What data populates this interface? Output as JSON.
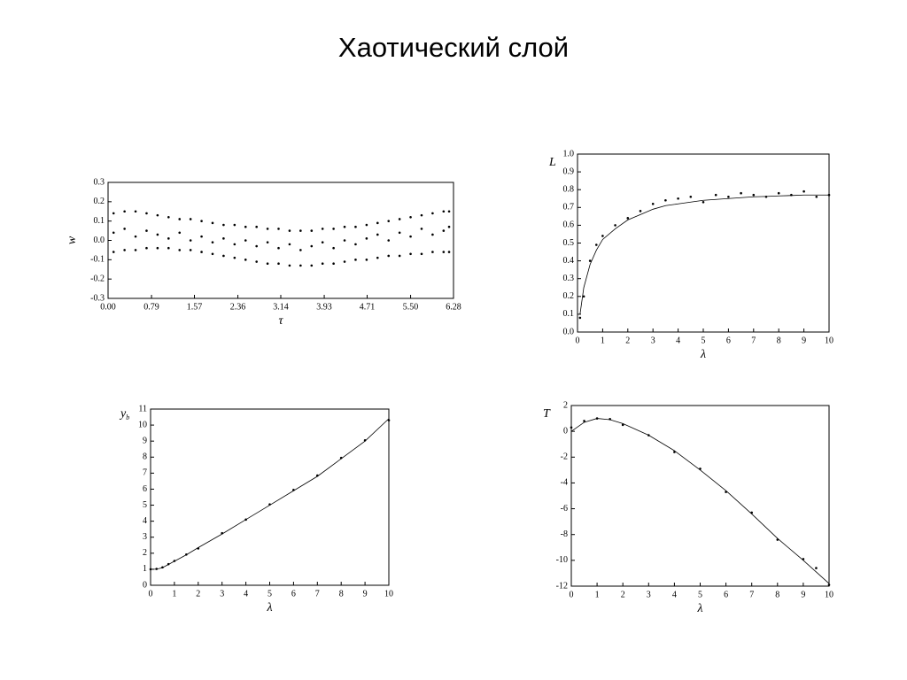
{
  "title": "Хаотический слой",
  "chart_data": [
    {
      "type": "scatter",
      "xlabel": "τ",
      "ylabel": "w",
      "xlim": [
        0,
        6.28
      ],
      "ylim": [
        -0.3,
        0.3
      ],
      "xticks": [
        {
          "value": 0,
          "label": "0.00"
        },
        0.79,
        1.57,
        2.36,
        3.14,
        3.93,
        4.71,
        {
          "value": 5.5,
          "label": "5.50"
        },
        6.28
      ],
      "yticks": [
        -0.3,
        -0.2,
        -0.1,
        {
          "value": 0,
          "label": "0.0"
        },
        0.1,
        0.2,
        0.3
      ],
      "x": [
        0.1,
        0.3,
        0.5,
        0.7,
        0.9,
        1.1,
        1.3,
        1.5,
        1.7,
        1.9,
        2.1,
        2.3,
        2.5,
        2.7,
        2.9,
        3.1,
        3.3,
        3.5,
        3.7,
        3.9,
        4.1,
        4.3,
        4.5,
        4.7,
        4.9,
        5.1,
        5.3,
        5.5,
        5.7,
        5.9,
        6.1,
        6.2
      ],
      "series": [
        {
          "color": "#000",
          "values": [
            0.14,
            0.15,
            0.15,
            0.14,
            0.13,
            0.12,
            0.11,
            0.11,
            0.1,
            0.09,
            0.08,
            0.08,
            0.07,
            0.07,
            0.06,
            0.06,
            0.05,
            0.05,
            0.05,
            0.06,
            0.06,
            0.07,
            0.07,
            0.08,
            0.09,
            0.1,
            0.11,
            0.12,
            0.13,
            0.14,
            0.15,
            0.15
          ]
        },
        {
          "color": "#000",
          "values": [
            0.04,
            0.06,
            0.02,
            0.05,
            0.03,
            0.01,
            0.04,
            0.0,
            0.02,
            -0.01,
            0.01,
            -0.02,
            0.0,
            -0.03,
            -0.01,
            -0.04,
            -0.02,
            -0.05,
            -0.03,
            -0.01,
            -0.04,
            0.0,
            -0.02,
            0.01,
            0.03,
            0.0,
            0.04,
            0.02,
            0.06,
            0.03,
            0.05,
            0.07
          ]
        },
        {
          "color": "#000",
          "values": [
            -0.06,
            -0.05,
            -0.05,
            -0.04,
            -0.04,
            -0.04,
            -0.05,
            -0.05,
            -0.06,
            -0.07,
            -0.08,
            -0.09,
            -0.1,
            -0.11,
            -0.12,
            -0.12,
            -0.13,
            -0.13,
            -0.13,
            -0.12,
            -0.12,
            -0.11,
            -0.1,
            -0.1,
            -0.09,
            -0.08,
            -0.08,
            -0.07,
            -0.07,
            -0.06,
            -0.06,
            -0.06
          ]
        }
      ]
    },
    {
      "type": "scatter",
      "xlabel": "λ",
      "ylabel": "L",
      "xlim": [
        0,
        10
      ],
      "ylim": [
        0,
        1
      ],
      "xticks": [
        0,
        1,
        2,
        3,
        4,
        5,
        6,
        7,
        8,
        9,
        10
      ],
      "yticks": [
        {
          "value": 0,
          "label": "0.0"
        },
        0.1,
        0.2,
        0.3,
        0.4,
        0.5,
        0.6,
        0.7,
        0.8,
        0.9,
        {
          "value": 1,
          "label": "1.0"
        }
      ],
      "x": [
        0.1,
        0.25,
        0.5,
        0.75,
        1,
        1.5,
        2,
        2.5,
        3,
        3.5,
        4,
        4.5,
        5,
        5.5,
        6,
        6.5,
        7,
        7.5,
        8,
        8.5,
        9,
        9.5,
        10
      ],
      "series": [
        {
          "type": "line",
          "color": "#000",
          "values": [
            0.1,
            0.25,
            0.38,
            0.46,
            0.52,
            0.58,
            0.63,
            0.66,
            0.69,
            0.71,
            0.72,
            0.73,
            0.74,
            0.745,
            0.75,
            0.755,
            0.76,
            0.762,
            0.765,
            0.767,
            0.77,
            0.77,
            0.77
          ]
        },
        {
          "color": "#000",
          "values": [
            0.08,
            0.2,
            0.4,
            0.49,
            0.54,
            0.6,
            0.64,
            0.68,
            0.72,
            0.74,
            0.75,
            0.76,
            0.73,
            0.77,
            0.76,
            0.78,
            0.77,
            0.76,
            0.78,
            0.77,
            0.79,
            0.76,
            0.77
          ]
        }
      ]
    },
    {
      "type": "scatter",
      "xlabel": "λ",
      "ylabel": {
        "text": "y",
        "sub": "b"
      },
      "xlim": [
        0,
        10
      ],
      "ylim": [
        0,
        11
      ],
      "xticks": [
        0,
        1,
        2,
        3,
        4,
        5,
        6,
        7,
        8,
        9,
        10
      ],
      "yticks": [
        0,
        1,
        2,
        3,
        4,
        5,
        6,
        7,
        8,
        9,
        10,
        11
      ],
      "x": [
        0,
        0.25,
        0.5,
        0.75,
        1,
        1.5,
        2,
        3,
        4,
        5,
        6,
        7,
        8,
        9,
        10
      ],
      "series": [
        {
          "type": "line",
          "color": "#000",
          "values": [
            1,
            1.0,
            1.1,
            1.3,
            1.5,
            1.9,
            2.35,
            3.2,
            4.1,
            5.0,
            5.9,
            6.8,
            7.9,
            9.0,
            10.4
          ]
        },
        {
          "color": "#000",
          "values": [
            1,
            1.02,
            1.12,
            1.32,
            1.52,
            1.92,
            2.3,
            3.25,
            4.1,
            5.05,
            5.95,
            6.85,
            7.95,
            9.05,
            10.3
          ]
        }
      ]
    },
    {
      "type": "scatter",
      "xlabel": "λ",
      "ylabel": "T",
      "xlim": [
        0,
        10
      ],
      "ylim": [
        -12,
        2
      ],
      "xticks": [
        0,
        1,
        2,
        3,
        4,
        5,
        6,
        7,
        8,
        9,
        10
      ],
      "yticks": [
        -12,
        -10,
        -8,
        -6,
        -4,
        -2,
        0,
        2
      ],
      "x": [
        0,
        0.5,
        1,
        1.5,
        2,
        3,
        4,
        5,
        6,
        7,
        8,
        9,
        9.5,
        10
      ],
      "series": [
        {
          "type": "line",
          "color": "#000",
          "values": [
            0,
            0.7,
            1,
            0.9,
            0.6,
            -0.3,
            -1.5,
            -3.0,
            -4.6,
            -6.4,
            -8.3,
            -10.0,
            -10.9,
            -11.8
          ]
        },
        {
          "color": "#000",
          "values": [
            0.3,
            0.8,
            1.0,
            0.95,
            0.5,
            -0.3,
            -1.6,
            -2.9,
            -4.7,
            -6.3,
            -8.4,
            -9.9,
            -10.6,
            -11.9
          ]
        }
      ]
    }
  ]
}
